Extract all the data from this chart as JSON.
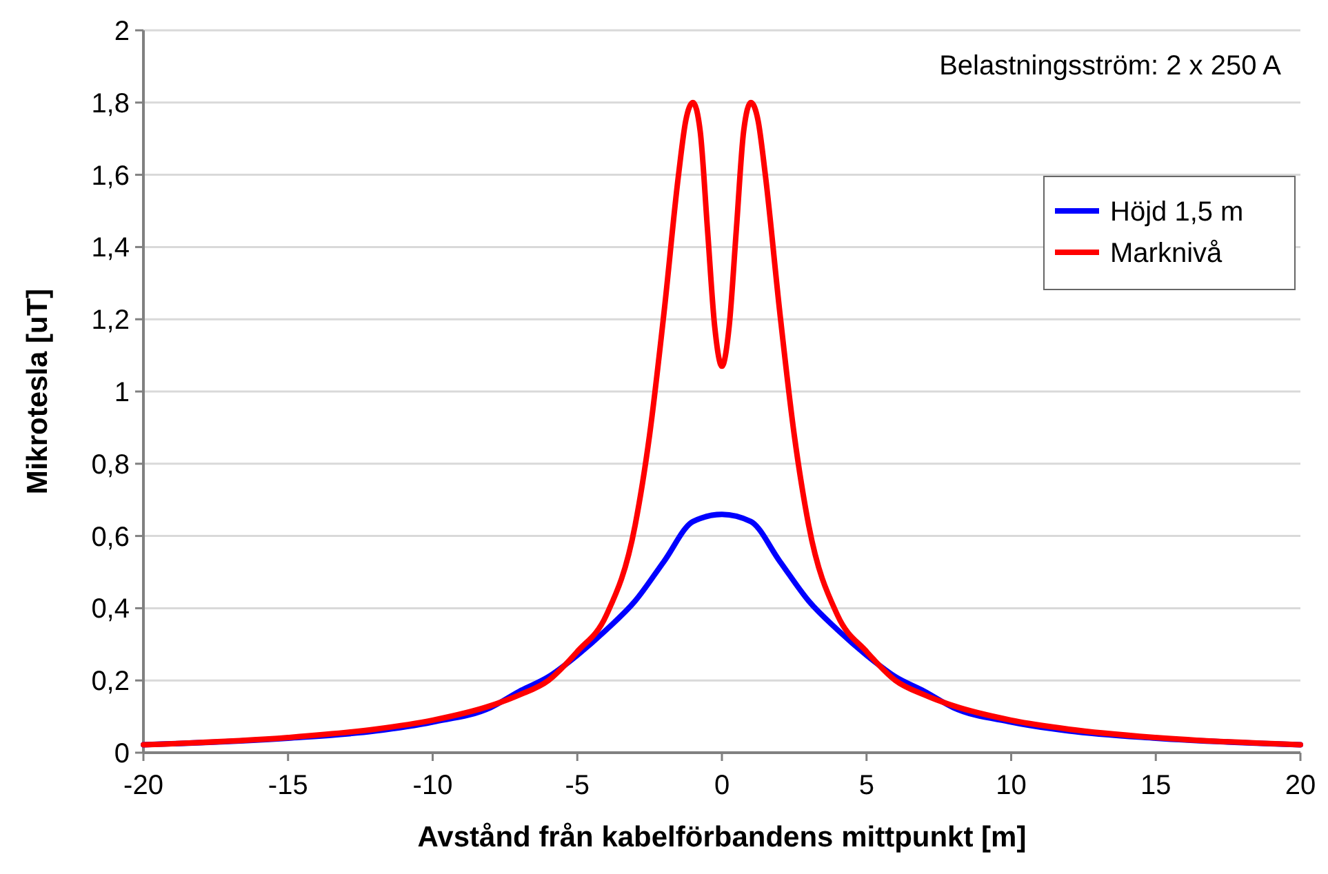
{
  "chart_data": {
    "type": "line",
    "xlabel": "Avstånd från kabelförbandens mittpunkt [m]",
    "ylabel": "Mikrotesla [uT]",
    "annotations": [
      "Belastningsström: 2 x 250 A"
    ],
    "xlim": [
      -20,
      20
    ],
    "xticks": [
      -20,
      -15,
      -10,
      -5,
      0,
      5,
      10,
      15,
      20
    ],
    "ylim": [
      0,
      2
    ],
    "yticks": [
      0,
      {
        "value": 0.2,
        "label": "0,2"
      },
      {
        "value": 0.4,
        "label": "0,4"
      },
      {
        "value": 0.6,
        "label": "0,6"
      },
      {
        "value": 0.8,
        "label": "0,8"
      },
      1,
      {
        "value": 1.2,
        "label": "1,2"
      },
      {
        "value": 1.4,
        "label": "1,4"
      },
      {
        "value": 1.6,
        "label": "1,6"
      },
      {
        "value": 1.8,
        "label": "1,8"
      },
      2
    ],
    "grid": "y",
    "legend": "right",
    "marker": "none",
    "line_style": "solid",
    "series": [
      {
        "name": "Höjd 1,5 m",
        "color": "#0000ff",
        "x": [
          -20,
          -15,
          -12,
          -10,
          -8,
          -7,
          -6,
          -5,
          -4,
          -3,
          -2,
          -1,
          0,
          1,
          2,
          3,
          4,
          5,
          6,
          7,
          8,
          10,
          12,
          15,
          20
        ],
        "values": [
          0.022,
          0.04,
          0.06,
          0.085,
          0.125,
          0.17,
          0.21,
          0.27,
          0.34,
          0.42,
          0.53,
          0.64,
          0.66,
          0.64,
          0.53,
          0.42,
          0.34,
          0.27,
          0.21,
          0.17,
          0.125,
          0.085,
          0.06,
          0.04,
          0.022
        ]
      },
      {
        "name": "Marknivå",
        "color": "#ff0000",
        "x": [
          -20,
          -15,
          -12,
          -10,
          -8,
          -7,
          -6,
          -5,
          -4,
          -3,
          -2.5,
          -2,
          -1.5,
          -1.25,
          -1,
          -0.75,
          -0.5,
          -0.25,
          0,
          0.25,
          0.5,
          0.75,
          1,
          1.25,
          1.5,
          2,
          2.5,
          3,
          4,
          5,
          6,
          7,
          8,
          10,
          12,
          15,
          20
        ],
        "values": [
          0.022,
          0.042,
          0.065,
          0.09,
          0.13,
          0.16,
          0.2,
          0.28,
          0.38,
          0.63,
          0.88,
          1.22,
          1.6,
          1.75,
          1.8,
          1.72,
          1.45,
          1.18,
          1.07,
          1.18,
          1.45,
          1.72,
          1.8,
          1.75,
          1.6,
          1.22,
          0.88,
          0.63,
          0.38,
          0.28,
          0.2,
          0.16,
          0.13,
          0.09,
          0.065,
          0.042,
          0.022
        ]
      }
    ]
  }
}
